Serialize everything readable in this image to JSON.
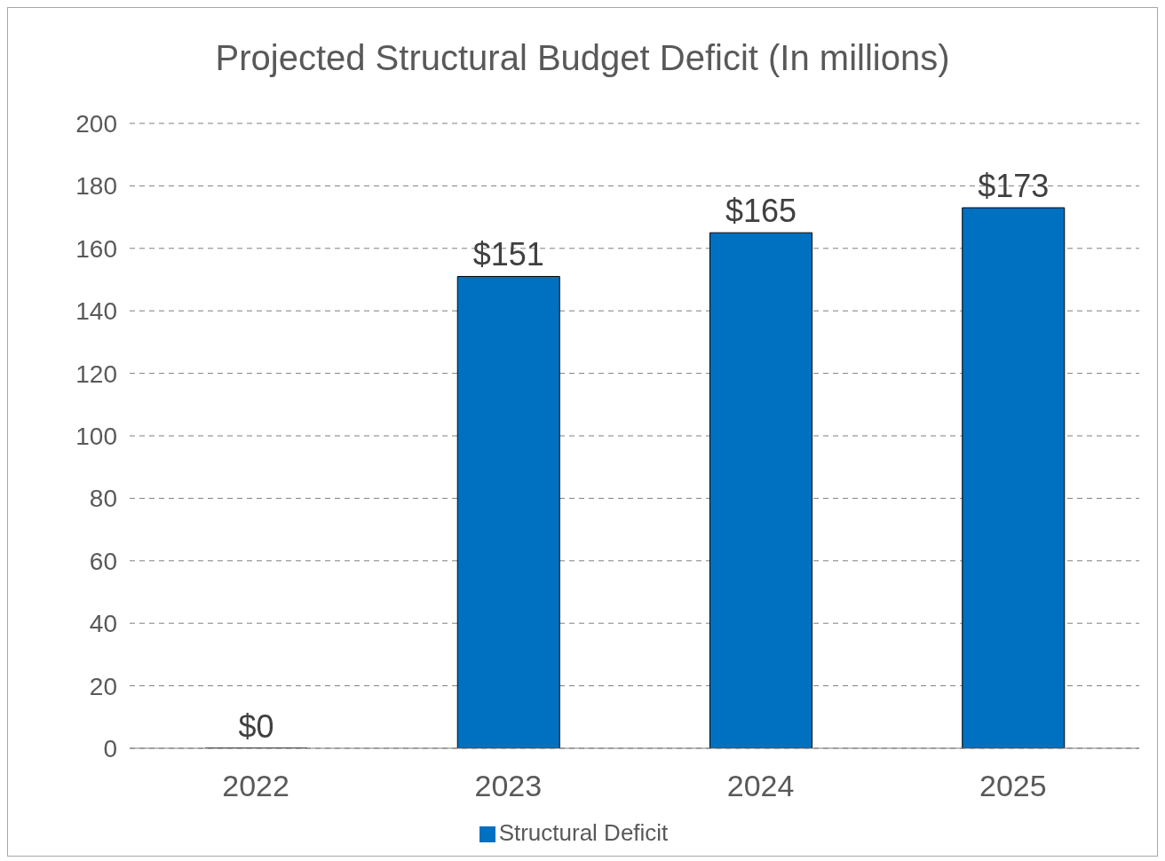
{
  "chart_data": {
    "type": "bar",
    "title": "Projected Structural Budget Deficit (In millions)",
    "categories": [
      "2022",
      "2023",
      "2024",
      "2025"
    ],
    "series": [
      {
        "name": "Structural Deficit",
        "color": "#0070c0",
        "values": [
          0,
          151,
          165,
          173
        ],
        "value_labels": [
          "$0",
          "$151",
          "$165",
          "$173"
        ]
      }
    ],
    "ylim": [
      0,
      200
    ],
    "yticks": [
      0,
      20,
      40,
      60,
      80,
      100,
      120,
      140,
      160,
      180,
      200
    ],
    "grid": "y",
    "line_style": "dashed",
    "legend": "bottom"
  }
}
